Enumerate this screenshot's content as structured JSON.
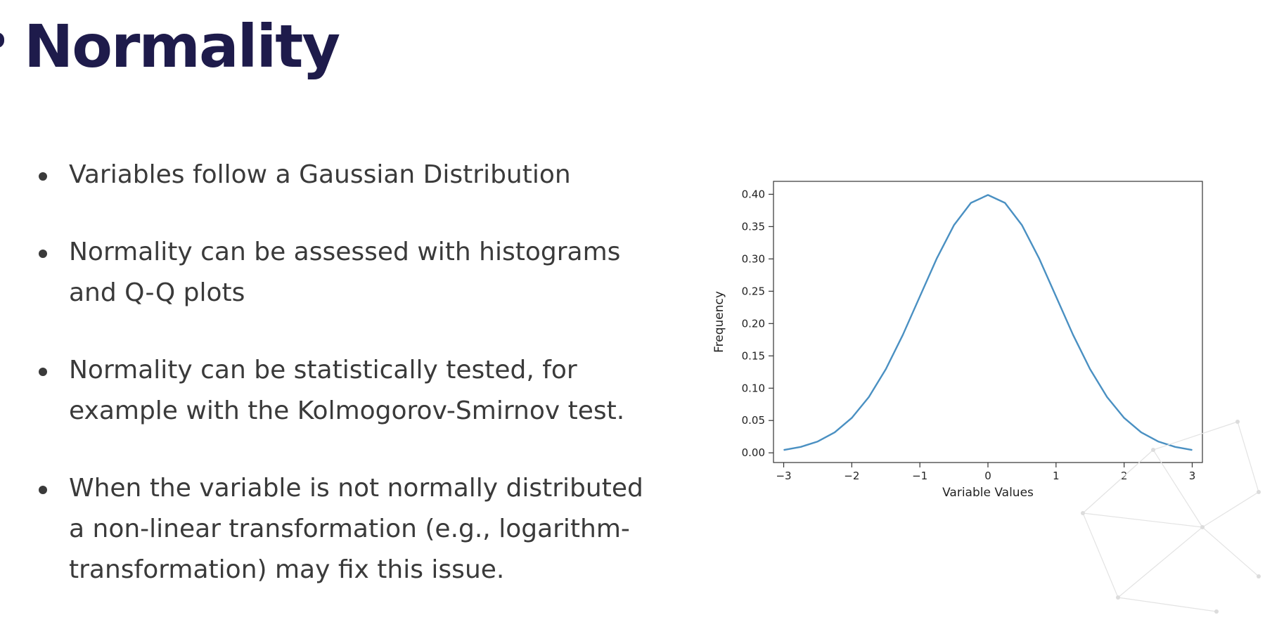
{
  "slide": {
    "title": "Normality",
    "bullets": [
      {
        "lines": [
          "Variables follow a Gaussian Distribution"
        ]
      },
      {
        "lines": [
          "Normality can be assessed with histograms",
          "and Q-Q plots"
        ]
      },
      {
        "lines": [
          "Normality can be statistically tested, for",
          "example with the Kolmogorov-Smirnov test."
        ]
      },
      {
        "lines": [
          "When the variable is not normally distributed",
          "a non-linear transformation (e.g., logarithm-",
          "transformation) may fix this issue."
        ]
      }
    ]
  },
  "chart_data": {
    "type": "line",
    "title": "",
    "xlabel": "Variable Values",
    "ylabel": "Frequency",
    "xlim": [
      -3.15,
      3.15
    ],
    "ylim": [
      -0.015,
      0.42
    ],
    "x_ticks": [
      -3,
      -2,
      -1,
      0,
      1,
      2,
      3
    ],
    "x_tick_labels": [
      "−3",
      "−2",
      "−1",
      "0",
      "1",
      "2",
      "3"
    ],
    "y_ticks": [
      0.0,
      0.05,
      0.1,
      0.15,
      0.2,
      0.25,
      0.3,
      0.35,
      0.4
    ],
    "y_tick_labels": [
      "0.00",
      "0.05",
      "0.10",
      "0.15",
      "0.20",
      "0.25",
      "0.30",
      "0.35",
      "0.40"
    ],
    "grid": false,
    "series": [
      {
        "color": "#4a90c2",
        "x": [
          -3.0,
          -2.75,
          -2.5,
          -2.25,
          -2.0,
          -1.75,
          -1.5,
          -1.25,
          -1.0,
          -0.75,
          -0.5,
          -0.25,
          0.0,
          0.25,
          0.5,
          0.75,
          1.0,
          1.25,
          1.5,
          1.75,
          2.0,
          2.25,
          2.5,
          2.75,
          3.0
        ],
        "y": [
          0.0044,
          0.0091,
          0.0175,
          0.0317,
          0.054,
          0.0863,
          0.1295,
          0.1826,
          0.242,
          0.3011,
          0.3521,
          0.3867,
          0.3989,
          0.3867,
          0.3521,
          0.3011,
          0.242,
          0.1826,
          0.1295,
          0.0863,
          0.054,
          0.0317,
          0.0175,
          0.0091,
          0.0044
        ]
      }
    ]
  }
}
